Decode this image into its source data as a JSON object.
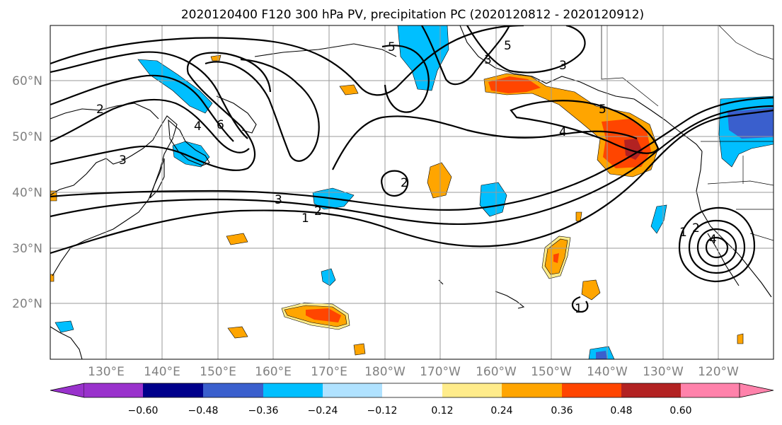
{
  "title": "2020120400 F120 300 hPa PV, precipitation PC (2020120812 - 2020120912)",
  "lat_labels": [
    "60°N",
    "50°N",
    "40°N",
    "30°N",
    "20°N"
  ],
  "lon_labels": [
    "130°E",
    "140°E",
    "150°E",
    "160°E",
    "170°E",
    "180°W",
    "170°W",
    "160°W",
    "150°W",
    "140°W",
    "130°W",
    "120°W"
  ],
  "colorbar": {
    "labels": [
      "−0.60",
      "−0.48",
      "−0.36",
      "−0.24",
      "−0.12",
      "0.12",
      "0.24",
      "0.36",
      "0.48",
      "0.60"
    ],
    "colors": [
      "#9932cc",
      "#00008b",
      "#3a5fcd",
      "#00bfff",
      "#b0e2ff",
      "#ffffff",
      "#ffec8b",
      "#ffa500",
      "#ff4500",
      "#b22222",
      "#ff82ab"
    ]
  },
  "contour_labels": {
    "c_5a": "5",
    "c_2a": "2",
    "c_4a": "4",
    "c_6a": "6",
    "c_3a": "3",
    "c_3b": "3",
    "c_2b": "2",
    "c_1a": "1",
    "c_2c": "2",
    "c_3c": "3",
    "c_5b": "5",
    "c_5c": "5",
    "c_4b": "4",
    "c_1b": "1",
    "c_2d": "2",
    "c_4c": "4",
    "c_3d": "3",
    "c_1c": "1"
  }
}
